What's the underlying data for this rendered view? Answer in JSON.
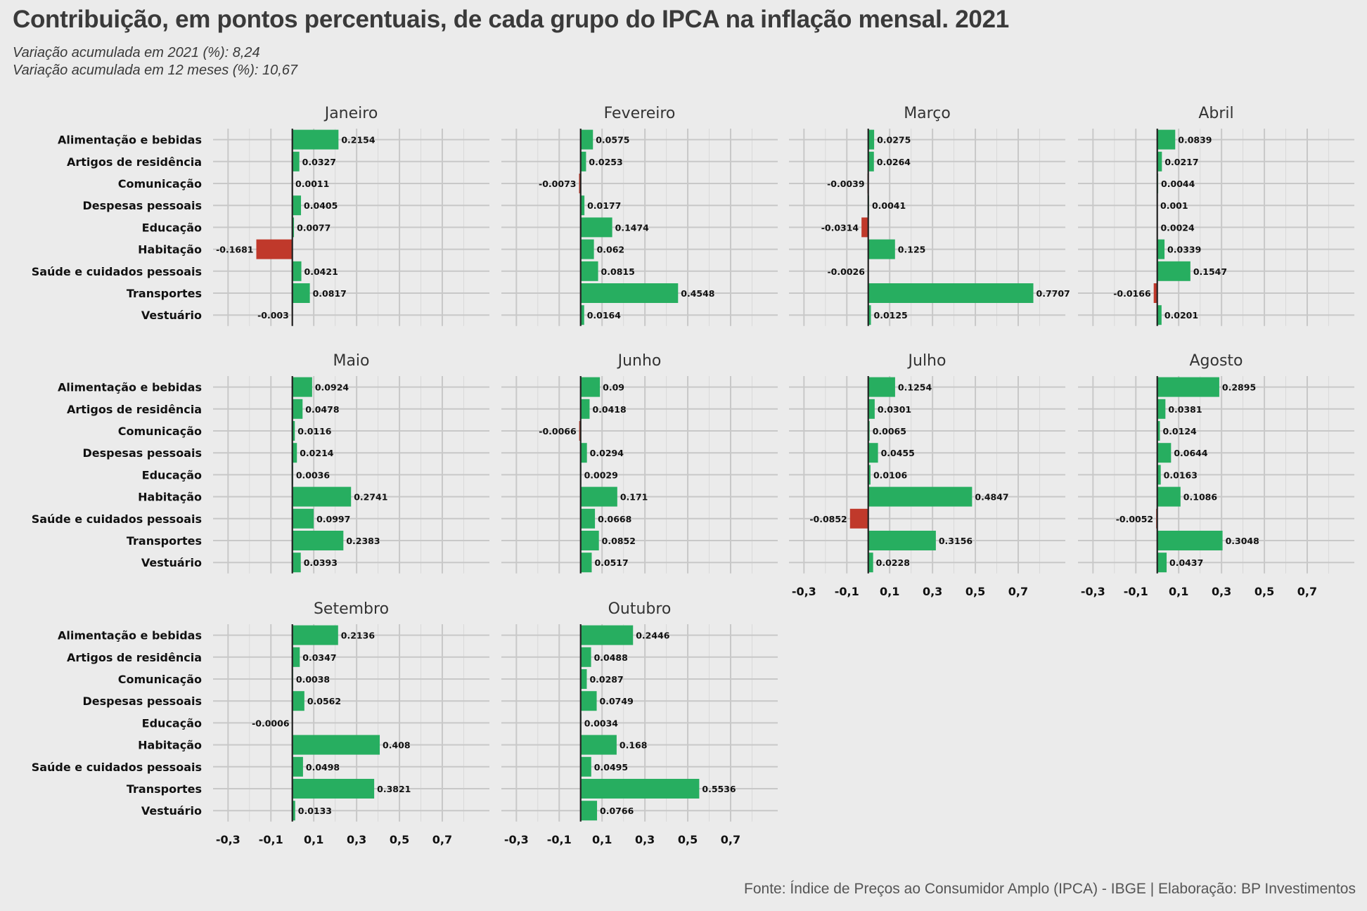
{
  "title": "Contribuição, em pontos percentuais, de cada grupo do IPCA na inflação mensal. 2021",
  "subtitle_lines": [
    "Variação acumulada em 2021 (%): 8,24",
    "Variação acumulada em 12 meses (%): 10,67"
  ],
  "caption": "Fonte: Índice de Preços ao Consumidor Amplo (IPCA) - IBGE | Elaboração: BP Investimentos",
  "colors": {
    "positive": "#27ae60",
    "negative": "#c0392b",
    "background": "#ebebeb",
    "grid": "#c8c8c8",
    "zero_line": "#222222"
  },
  "chart_data": {
    "type": "bar",
    "orientation": "horizontal",
    "facet_by": "month",
    "categories": [
      "Alimentação e bebidas",
      "Artigos de residência",
      "Comunicação",
      "Despesas pessoais",
      "Educação",
      "Habitação",
      "Saúde e cuidados pessoais",
      "Transportes",
      "Vestuário"
    ],
    "x_ticks": [
      "-0,3",
      "-0,1",
      "0,1",
      "0,3",
      "0,5",
      "0,7"
    ],
    "x_tick_values": [
      -0.3,
      -0.1,
      0.1,
      0.3,
      0.5,
      0.7
    ],
    "xlim": [
      -0.37,
      0.92
    ],
    "grid": true,
    "facets": [
      {
        "name": "Janeiro",
        "values": [
          0.2154,
          0.0327,
          0.0011,
          0.0405,
          0.0077,
          -0.1681,
          0.0421,
          0.0817,
          -0.003
        ],
        "labels": [
          "0.2154",
          "0.0327",
          "0.0011",
          "0.0405",
          "0.0077",
          "-0.1681",
          "0.0421",
          "0.0817",
          "-0.003"
        ]
      },
      {
        "name": "Fevereiro",
        "values": [
          0.0575,
          0.0253,
          -0.0073,
          0.0177,
          0.1474,
          0.062,
          0.0815,
          0.4548,
          0.0164
        ],
        "labels": [
          "0.0575",
          "0.0253",
          "-0.0073",
          "0.0177",
          "0.1474",
          "0.062",
          "0.0815",
          "0.4548",
          "0.0164"
        ]
      },
      {
        "name": "Março",
        "values": [
          0.0275,
          0.0264,
          -0.0039,
          0.0041,
          -0.0314,
          0.125,
          -0.0026,
          0.7707,
          0.0125
        ],
        "labels": [
          "0.0275",
          "0.0264",
          "-0.0039",
          "0.0041",
          "-0.0314",
          "0.125",
          "-0.0026",
          "0.7707",
          "0.0125"
        ]
      },
      {
        "name": "Abril",
        "values": [
          0.0839,
          0.0217,
          0.0044,
          0.001,
          0.0024,
          0.0339,
          0.1547,
          -0.0166,
          0.0201
        ],
        "labels": [
          "0.0839",
          "0.0217",
          "0.0044",
          "0.001",
          "0.0024",
          "0.0339",
          "0.1547",
          "-0.0166",
          "0.0201"
        ]
      },
      {
        "name": "Maio",
        "values": [
          0.0924,
          0.0478,
          0.0116,
          0.0214,
          0.0036,
          0.2741,
          0.0997,
          0.2383,
          0.0393
        ],
        "labels": [
          "0.0924",
          "0.0478",
          "0.0116",
          "0.0214",
          "0.0036",
          "0.2741",
          "0.0997",
          "0.2383",
          "0.0393"
        ]
      },
      {
        "name": "Junho",
        "values": [
          0.09,
          0.0418,
          -0.0066,
          0.0294,
          0.0029,
          0.171,
          0.0668,
          0.0852,
          0.0517
        ],
        "labels": [
          "0.09",
          "0.0418",
          "-0.0066",
          "0.0294",
          "0.0029",
          "0.171",
          "0.0668",
          "0.0852",
          "0.0517"
        ]
      },
      {
        "name": "Julho",
        "values": [
          0.1254,
          0.0301,
          0.0065,
          0.0455,
          0.0106,
          0.4847,
          -0.0852,
          0.3156,
          0.0228
        ],
        "labels": [
          "0.1254",
          "0.0301",
          "0.0065",
          "0.0455",
          "0.0106",
          "0.4847",
          "-0.0852",
          "0.3156",
          "0.0228"
        ]
      },
      {
        "name": "Agosto",
        "values": [
          0.2895,
          0.0381,
          0.0124,
          0.0644,
          0.0163,
          0.1086,
          -0.0052,
          0.3048,
          0.0437
        ],
        "labels": [
          "0.2895",
          "0.0381",
          "0.0124",
          "0.0644",
          "0.0163",
          "0.1086",
          "-0.0052",
          "0.3048",
          "0.0437"
        ]
      },
      {
        "name": "Setembro",
        "values": [
          0.2136,
          0.0347,
          0.0038,
          0.0562,
          -0.0006,
          0.408,
          0.0498,
          0.3821,
          0.0133
        ],
        "labels": [
          "0.2136",
          "0.0347",
          "0.0038",
          "0.0562",
          "-0.0006",
          "0.408",
          "0.0498",
          "0.3821",
          "0.0133"
        ]
      },
      {
        "name": "Outubro",
        "values": [
          0.2446,
          0.0488,
          0.0287,
          0.0749,
          0.0034,
          0.168,
          0.0495,
          0.5536,
          0.0766
        ],
        "labels": [
          "0.2446",
          "0.0488",
          "0.0287",
          "0.0749",
          "0.0034",
          "0.168",
          "0.0495",
          "0.5536",
          "0.0766"
        ]
      }
    ]
  }
}
